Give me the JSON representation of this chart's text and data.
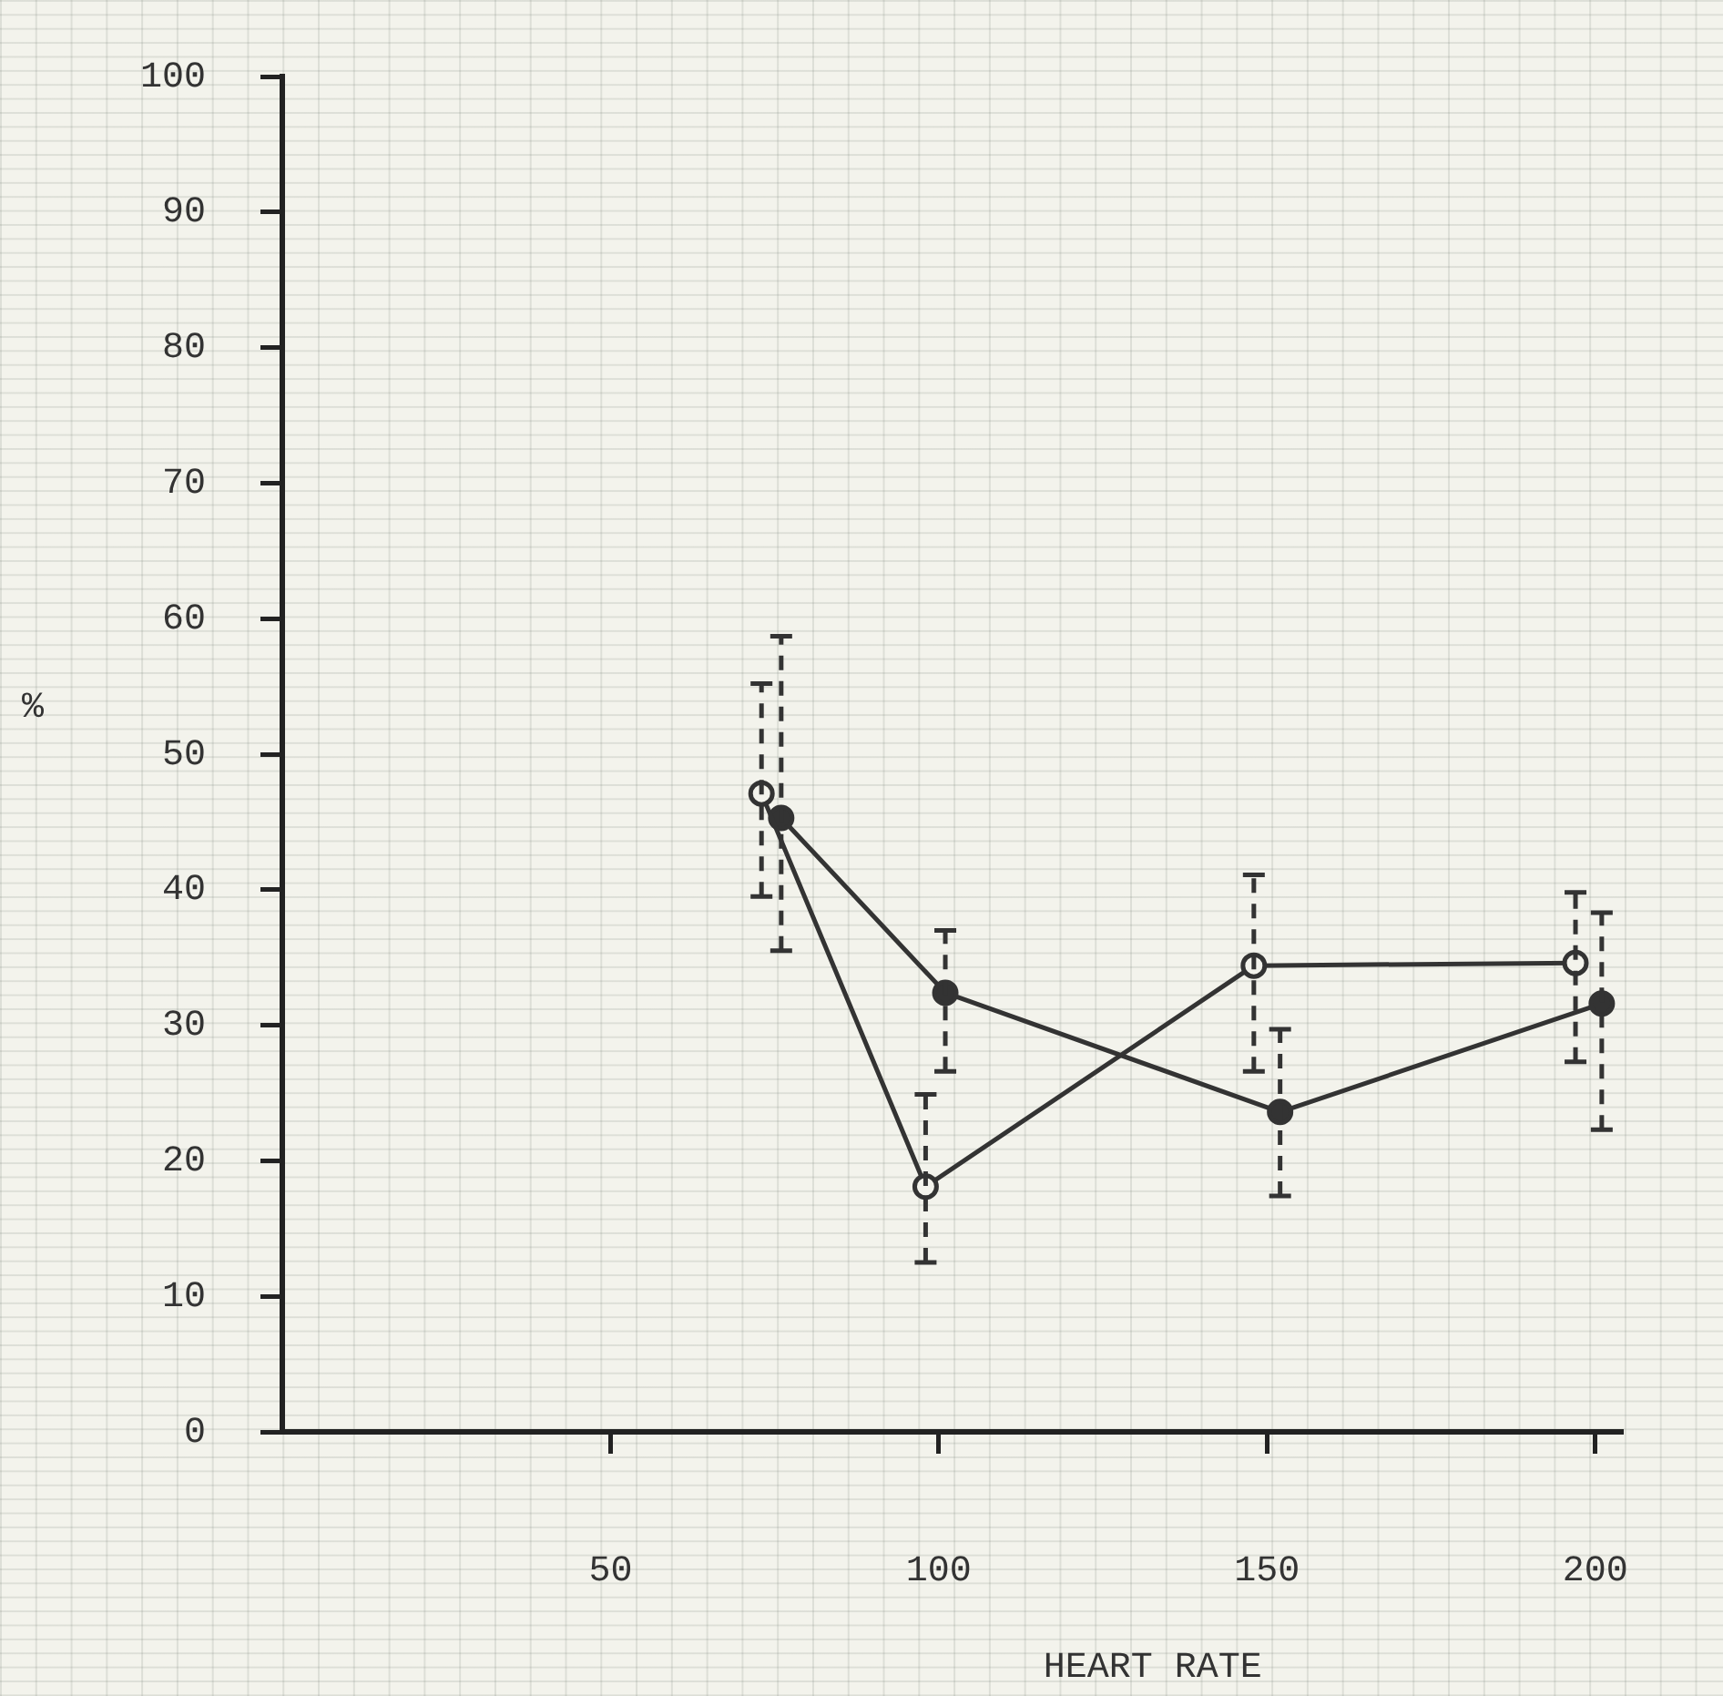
{
  "chart_data": {
    "type": "line",
    "xlabel": "HEART RATE",
    "ylabel": "%",
    "xlim": [
      0,
      204
    ],
    "xticks": [
      50,
      100,
      150,
      200
    ],
    "ylim": [
      0,
      100
    ],
    "yticks": [
      0,
      10,
      20,
      30,
      40,
      50,
      60,
      70,
      80,
      90,
      100
    ],
    "grid": false,
    "legend": false,
    "marker": "circle",
    "line_style": "solid",
    "series": [
      {
        "color": "#333333",
        "x": [
          73,
          98,
          148,
          197
        ],
        "values": [
          47.1,
          18.1,
          34.4,
          34.6
        ],
        "errors": [
          [
            39.5,
            55.2
          ],
          [
            12.5,
            24.9
          ],
          [
            26.6,
            41.1
          ],
          [
            27.3,
            39.8
          ]
        ]
      },
      {
        "color": "#333333",
        "x": [
          76,
          101,
          152,
          201
        ],
        "values": [
          45.3,
          32.4,
          23.6,
          31.6
        ],
        "errors": [
          [
            35.5,
            58.7
          ],
          [
            26.6,
            37
          ],
          [
            17.4,
            29.7
          ],
          [
            22.3,
            38.3
          ]
        ]
      }
    ]
  }
}
